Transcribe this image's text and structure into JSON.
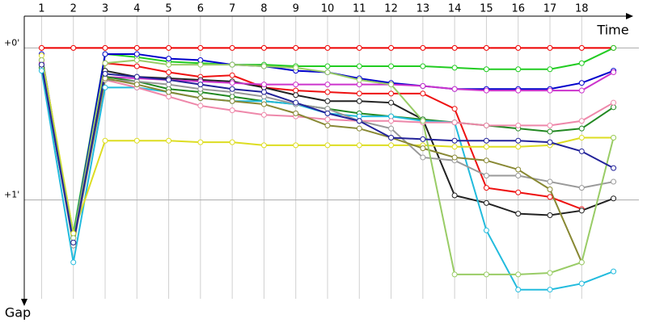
{
  "chart_data": {
    "type": "line",
    "x_label": "Time",
    "y_label": "Gap",
    "x": [
      1,
      2,
      3,
      4,
      5,
      6,
      7,
      8,
      9,
      10,
      11,
      12,
      13,
      14,
      15,
      16,
      17,
      18,
      19
    ],
    "xlim": [
      0.2,
      19.8
    ],
    "xticks": [
      1,
      2,
      3,
      4,
      5,
      6,
      7,
      8,
      9,
      10,
      11,
      12,
      13,
      14,
      15,
      16,
      17,
      18
    ],
    "ylim": [
      -0.22,
      1.65
    ],
    "y_inverted": true,
    "yticks": [
      {
        "value": 0,
        "label": "+0'"
      },
      {
        "value": 1,
        "label": "+1'"
      }
    ],
    "grid": true,
    "series": [
      {
        "color": "#ee0000",
        "values": [
          0,
          0,
          0,
          0,
          0,
          0,
          0,
          0,
          0,
          0,
          0,
          0,
          0,
          0,
          0,
          0,
          0,
          0,
          0
        ]
      },
      {
        "color": "#22cc22",
        "values": [
          0.08,
          1.22,
          0.04,
          0.06,
          0.09,
          0.1,
          0.11,
          0.11,
          0.12,
          0.12,
          0.12,
          0.12,
          0.12,
          0.13,
          0.14,
          0.14,
          0.14,
          0.1,
          0
        ]
      },
      {
        "color": "#0000cc",
        "values": [
          0.04,
          1.25,
          0.04,
          0.04,
          0.07,
          0.08,
          0.11,
          0.12,
          0.15,
          0.16,
          0.2,
          0.23,
          0.25,
          0.27,
          0.27,
          0.27,
          0.27,
          0.23,
          0.15
        ]
      },
      {
        "color": "#ee1111",
        "values": [
          0.08,
          1.28,
          0.1,
          0.12,
          0.16,
          0.19,
          0.18,
          0.26,
          0.28,
          0.29,
          0.3,
          0.3,
          0.3,
          0.4,
          0.92,
          0.95,
          0.98,
          1.06,
          null
        ]
      },
      {
        "color": "#222222",
        "values": [
          0.08,
          1.28,
          0.15,
          0.19,
          0.2,
          0.21,
          0.22,
          0.26,
          0.31,
          0.35,
          0.35,
          0.36,
          0.47,
          0.97,
          1.02,
          1.09,
          1.1,
          1.07,
          0.99
        ]
      },
      {
        "color": "#cc33cc",
        "values": [
          0.1,
          1.25,
          0.19,
          0.2,
          0.21,
          0.22,
          0.23,
          0.24,
          0.24,
          0.24,
          0.24,
          0.24,
          0.25,
          0.27,
          0.28,
          0.28,
          0.28,
          0.28,
          0.16
        ]
      },
      {
        "color": "#228822",
        "values": [
          0.13,
          1.28,
          0.19,
          0.22,
          0.27,
          0.29,
          0.32,
          0.35,
          0.37,
          0.4,
          0.43,
          0.45,
          0.47,
          0.49,
          0.51,
          0.53,
          0.55,
          0.53,
          0.39
        ]
      },
      {
        "color": "#22bbdd",
        "values": [
          0.15,
          1.41,
          0.26,
          0.26,
          0.29,
          0.33,
          0.35,
          0.35,
          0.37,
          0.43,
          0.45,
          0.45,
          0.48,
          0.49,
          1.2,
          1.59,
          1.59,
          1.55,
          1.47
        ]
      },
      {
        "color": "#dddd22",
        "values": [
          0.05,
          1.22,
          0.61,
          0.61,
          0.61,
          0.62,
          0.62,
          0.64,
          0.64,
          0.64,
          0.64,
          0.64,
          0.64,
          0.65,
          0.65,
          0.65,
          0.64,
          0.59,
          0.59
        ]
      },
      {
        "color": "#ee88aa",
        "values": [
          0.08,
          1.28,
          0.21,
          0.26,
          0.32,
          0.38,
          0.41,
          0.44,
          0.45,
          0.47,
          0.48,
          0.48,
          0.49,
          0.49,
          0.51,
          0.51,
          0.51,
          0.48,
          0.36
        ]
      },
      {
        "color": "#999999",
        "values": [
          0.11,
          1.3,
          0.21,
          0.22,
          0.24,
          0.27,
          0.29,
          0.32,
          0.37,
          0.4,
          0.48,
          0.53,
          0.72,
          0.74,
          0.84,
          0.84,
          0.88,
          0.92,
          0.88
        ]
      },
      {
        "color": "#888833",
        "values": [
          0.11,
          1.28,
          0.2,
          0.24,
          0.29,
          0.33,
          0.35,
          0.37,
          0.43,
          0.51,
          0.53,
          0.59,
          0.66,
          0.72,
          0.74,
          0.8,
          0.93,
          1.41,
          null
        ]
      },
      {
        "color": "#99cc66",
        "values": [
          0.08,
          1.25,
          0.1,
          0.08,
          0.11,
          0.11,
          0.11,
          0.12,
          0.13,
          0.16,
          0.21,
          0.24,
          0.48,
          1.49,
          1.49,
          1.49,
          1.48,
          1.41,
          0.59
        ]
      },
      {
        "color": "#222299",
        "values": [
          0.11,
          1.28,
          0.17,
          0.19,
          0.21,
          0.24,
          0.27,
          0.29,
          0.36,
          0.43,
          0.48,
          0.59,
          0.6,
          0.61,
          0.61,
          0.61,
          0.62,
          0.68,
          0.79
        ]
      }
    ]
  }
}
